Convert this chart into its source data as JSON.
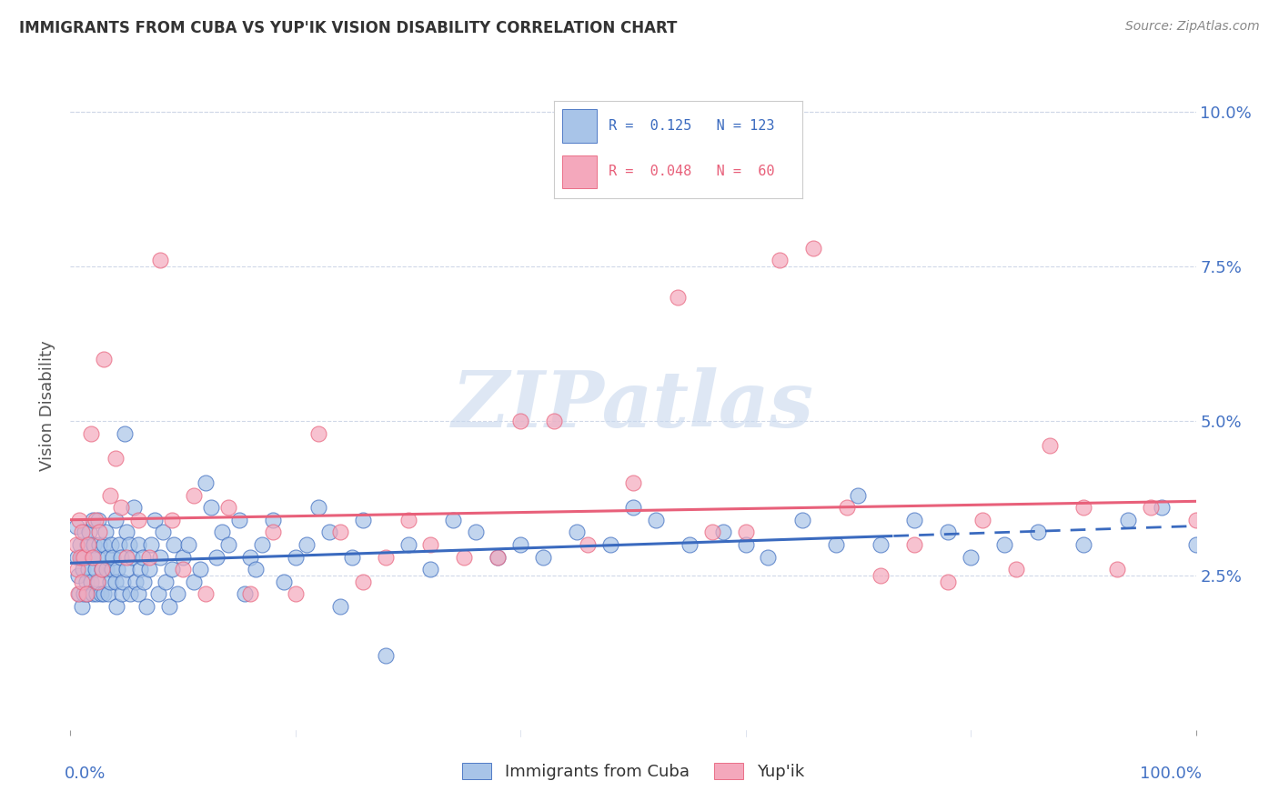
{
  "title": "IMMIGRANTS FROM CUBA VS YUP'IK VISION DISABILITY CORRELATION CHART",
  "source": "Source: ZipAtlas.com",
  "ylabel": "Vision Disability",
  "xlim": [
    0,
    1
  ],
  "ylim": [
    0,
    0.105
  ],
  "ytick_vals": [
    0.025,
    0.05,
    0.075,
    0.1
  ],
  "ytick_labels": [
    "2.5%",
    "5.0%",
    "7.5%",
    "10.0%"
  ],
  "cuba_color": "#a8c4e8",
  "yupik_color": "#f4a8bc",
  "cuba_line_color": "#3a6abf",
  "yupik_line_color": "#e8607a",
  "watermark_color": "#c8d8ee",
  "background_color": "#ffffff",
  "grid_color": "#d0d8e8",
  "cuba_intercept": 0.027,
  "cuba_slope": 0.006,
  "yupik_intercept": 0.034,
  "yupik_slope": 0.003,
  "cuba_x": [
    0.005,
    0.006,
    0.007,
    0.008,
    0.009,
    0.01,
    0.01,
    0.011,
    0.012,
    0.013,
    0.014,
    0.015,
    0.015,
    0.016,
    0.017,
    0.018,
    0.019,
    0.02,
    0.02,
    0.021,
    0.022,
    0.023,
    0.024,
    0.025,
    0.025,
    0.026,
    0.027,
    0.028,
    0.03,
    0.03,
    0.031,
    0.032,
    0.033,
    0.034,
    0.035,
    0.036,
    0.037,
    0.038,
    0.04,
    0.04,
    0.041,
    0.042,
    0.043,
    0.045,
    0.046,
    0.047,
    0.048,
    0.05,
    0.05,
    0.052,
    0.053,
    0.055,
    0.056,
    0.058,
    0.06,
    0.06,
    0.062,
    0.064,
    0.065,
    0.068,
    0.07,
    0.072,
    0.075,
    0.078,
    0.08,
    0.082,
    0.085,
    0.088,
    0.09,
    0.092,
    0.095,
    0.1,
    0.105,
    0.11,
    0.115,
    0.12,
    0.125,
    0.13,
    0.135,
    0.14,
    0.15,
    0.155,
    0.16,
    0.165,
    0.17,
    0.18,
    0.19,
    0.2,
    0.21,
    0.22,
    0.23,
    0.24,
    0.25,
    0.26,
    0.28,
    0.3,
    0.32,
    0.34,
    0.36,
    0.38,
    0.4,
    0.42,
    0.45,
    0.48,
    0.5,
    0.52,
    0.55,
    0.58,
    0.6,
    0.62,
    0.65,
    0.68,
    0.7,
    0.72,
    0.75,
    0.78,
    0.8,
    0.83,
    0.86,
    0.9,
    0.94,
    0.97,
    1.0
  ],
  "cuba_y": [
    0.033,
    0.028,
    0.025,
    0.022,
    0.03,
    0.028,
    0.02,
    0.026,
    0.022,
    0.032,
    0.024,
    0.03,
    0.022,
    0.026,
    0.032,
    0.024,
    0.028,
    0.034,
    0.022,
    0.03,
    0.026,
    0.022,
    0.028,
    0.034,
    0.024,
    0.03,
    0.022,
    0.026,
    0.03,
    0.022,
    0.032,
    0.026,
    0.028,
    0.022,
    0.024,
    0.03,
    0.026,
    0.028,
    0.024,
    0.034,
    0.02,
    0.026,
    0.03,
    0.028,
    0.022,
    0.024,
    0.048,
    0.032,
    0.026,
    0.03,
    0.022,
    0.028,
    0.036,
    0.024,
    0.03,
    0.022,
    0.026,
    0.028,
    0.024,
    0.02,
    0.026,
    0.03,
    0.034,
    0.022,
    0.028,
    0.032,
    0.024,
    0.02,
    0.026,
    0.03,
    0.022,
    0.028,
    0.03,
    0.024,
    0.026,
    0.04,
    0.036,
    0.028,
    0.032,
    0.03,
    0.034,
    0.022,
    0.028,
    0.026,
    0.03,
    0.034,
    0.024,
    0.028,
    0.03,
    0.036,
    0.032,
    0.02,
    0.028,
    0.034,
    0.012,
    0.03,
    0.026,
    0.034,
    0.032,
    0.028,
    0.03,
    0.028,
    0.032,
    0.03,
    0.036,
    0.034,
    0.03,
    0.032,
    0.03,
    0.028,
    0.034,
    0.03,
    0.038,
    0.03,
    0.034,
    0.032,
    0.028,
    0.03,
    0.032,
    0.03,
    0.034,
    0.036,
    0.03
  ],
  "yupik_x": [
    0.005,
    0.006,
    0.007,
    0.008,
    0.009,
    0.01,
    0.01,
    0.012,
    0.014,
    0.016,
    0.018,
    0.02,
    0.022,
    0.024,
    0.026,
    0.028,
    0.03,
    0.035,
    0.04,
    0.045,
    0.05,
    0.06,
    0.07,
    0.08,
    0.09,
    0.1,
    0.11,
    0.12,
    0.14,
    0.16,
    0.18,
    0.2,
    0.22,
    0.24,
    0.26,
    0.28,
    0.3,
    0.32,
    0.35,
    0.38,
    0.4,
    0.43,
    0.46,
    0.5,
    0.54,
    0.57,
    0.6,
    0.63,
    0.66,
    0.69,
    0.72,
    0.75,
    0.78,
    0.81,
    0.84,
    0.87,
    0.9,
    0.93,
    0.96,
    1.0
  ],
  "yupik_y": [
    0.03,
    0.026,
    0.022,
    0.034,
    0.028,
    0.032,
    0.024,
    0.028,
    0.022,
    0.03,
    0.048,
    0.028,
    0.034,
    0.024,
    0.032,
    0.026,
    0.06,
    0.038,
    0.044,
    0.036,
    0.028,
    0.034,
    0.028,
    0.076,
    0.034,
    0.026,
    0.038,
    0.022,
    0.036,
    0.022,
    0.032,
    0.022,
    0.048,
    0.032,
    0.024,
    0.028,
    0.034,
    0.03,
    0.028,
    0.028,
    0.05,
    0.05,
    0.03,
    0.04,
    0.07,
    0.032,
    0.032,
    0.076,
    0.078,
    0.036,
    0.025,
    0.03,
    0.024,
    0.034,
    0.026,
    0.046,
    0.036,
    0.026,
    0.036,
    0.034
  ]
}
